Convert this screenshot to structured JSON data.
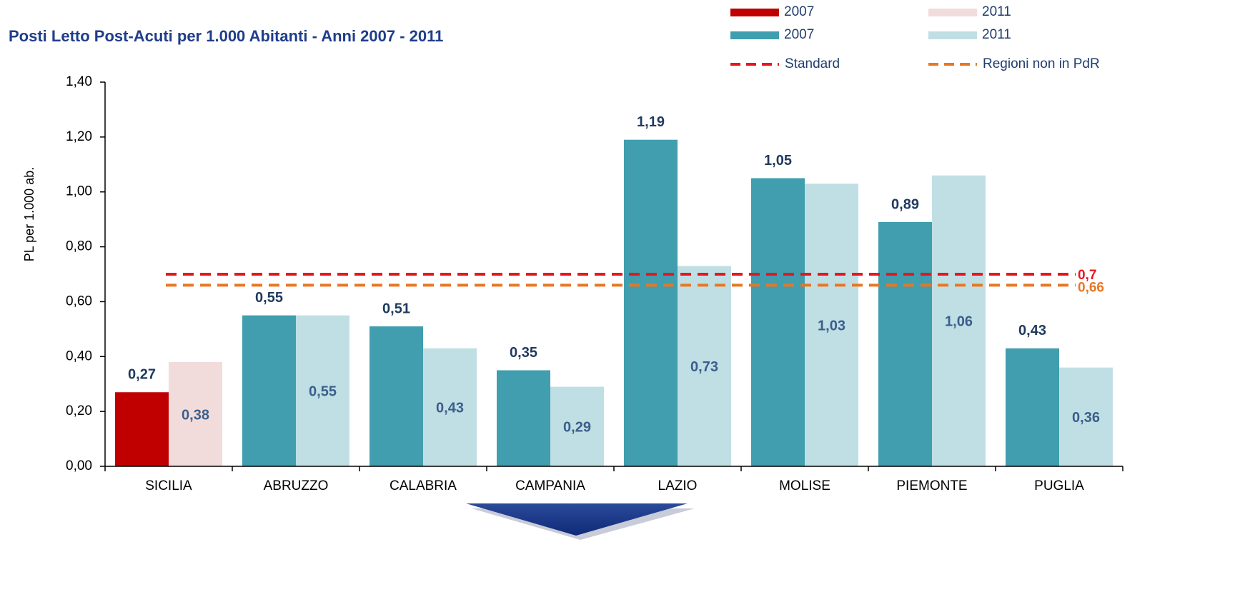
{
  "chart_data": {
    "type": "bar",
    "title": "Posti Letto Post-Acuti per 1.000 Abitanti - Anni 2007 - 2011",
    "y_label": "PL per 1.000 ab.",
    "categories": [
      "SICILIA",
      "ABRUZZO",
      "CALABRIA",
      "CAMPANIA",
      "LAZIO",
      "MOLISE",
      "PIEMONTE",
      "PUGLIA"
    ],
    "series": [
      {
        "name": "2007",
        "color": "#c00000",
        "label_position": "above",
        "values": [
          0.27,
          null,
          null,
          null,
          null,
          null,
          null,
          null
        ],
        "value_labels": [
          "0,27",
          null,
          null,
          null,
          null,
          null,
          null,
          null
        ]
      },
      {
        "name": "2011",
        "color": "#f2dcdb",
        "label_position": "inside",
        "values": [
          0.38,
          null,
          null,
          null,
          null,
          null,
          null,
          null
        ],
        "value_labels": [
          "0,38",
          null,
          null,
          null,
          null,
          null,
          null,
          null
        ]
      },
      {
        "name": "2007",
        "color": "#409eaf",
        "label_position": "above",
        "values": [
          null,
          0.55,
          0.51,
          0.35,
          1.19,
          1.05,
          0.89,
          0.43
        ],
        "value_labels": [
          null,
          "0,55",
          "0,51",
          "0,35",
          "1,19",
          "1,05",
          "0,89",
          "0,43"
        ]
      },
      {
        "name": "2011",
        "color": "#c0dfe4",
        "label_position": "inside",
        "values": [
          null,
          0.55,
          0.43,
          0.29,
          0.73,
          1.03,
          1.06,
          0.36
        ],
        "value_labels": [
          null,
          "0,55",
          "0,43",
          "0,29",
          "0,73",
          "1,03",
          "1,06",
          "0,36"
        ]
      }
    ],
    "reference_lines": [
      {
        "name": "Standard",
        "value": 0.7,
        "value_label": "0,7",
        "color": "#e8161c"
      },
      {
        "name": "Regioni non in PdR",
        "value": 0.66,
        "value_label": "0,66",
        "color": "#e87722"
      }
    ],
    "ylim": [
      0,
      1.4
    ],
    "yticks": [
      {
        "value": 0,
        "label": "0,00"
      },
      {
        "value": 0.2,
        "label": "0,20"
      },
      {
        "value": 0.4,
        "label": "0,40"
      },
      {
        "value": 0.6,
        "label": "0,60"
      },
      {
        "value": 0.8,
        "label": "0,80"
      },
      {
        "value": 1.0,
        "label": "1,00"
      },
      {
        "value": 1.2,
        "label": "1,20"
      },
      {
        "value": 1.4,
        "label": "1,40"
      }
    ],
    "grid": false
  }
}
